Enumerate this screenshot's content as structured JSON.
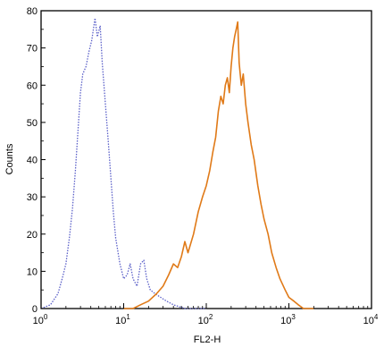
{
  "chart_data": {
    "type": "line",
    "title": "",
    "xlabel": "FL2-H",
    "ylabel": "Counts",
    "xscale": "log",
    "xlim": [
      1,
      10000
    ],
    "ylim": [
      0,
      80
    ],
    "grid": false,
    "legend": "none",
    "x_ticks": [
      {
        "value": 1,
        "base": "10",
        "exp": "0"
      },
      {
        "value": 10,
        "base": "10",
        "exp": "1"
      },
      {
        "value": 100,
        "base": "10",
        "exp": "2"
      },
      {
        "value": 1000,
        "base": "10",
        "exp": "3"
      },
      {
        "value": 10000,
        "base": "10",
        "exp": "4"
      }
    ],
    "y_ticks": [
      0,
      10,
      20,
      30,
      40,
      50,
      60,
      70,
      80
    ],
    "series": [
      {
        "style": "dotted",
        "color": "#5a5fc8",
        "points": [
          [
            1.0,
            0
          ],
          [
            1.3,
            1
          ],
          [
            1.6,
            4
          ],
          [
            1.8,
            8
          ],
          [
            2.0,
            12
          ],
          [
            2.2,
            19
          ],
          [
            2.4,
            27
          ],
          [
            2.6,
            37
          ],
          [
            2.8,
            48
          ],
          [
            3.0,
            58
          ],
          [
            3.2,
            63
          ],
          [
            3.5,
            65
          ],
          [
            3.8,
            69
          ],
          [
            4.1,
            72
          ],
          [
            4.5,
            78
          ],
          [
            4.8,
            73
          ],
          [
            5.2,
            76
          ],
          [
            5.5,
            66
          ],
          [
            6.0,
            55
          ],
          [
            6.5,
            45
          ],
          [
            7.0,
            35
          ],
          [
            7.5,
            26
          ],
          [
            8.0,
            19
          ],
          [
            9.0,
            12
          ],
          [
            10.0,
            8
          ],
          [
            11.0,
            9
          ],
          [
            12.0,
            12
          ],
          [
            13.0,
            8
          ],
          [
            14.5,
            6
          ],
          [
            16.0,
            12
          ],
          [
            17.5,
            13
          ],
          [
            19.0,
            8
          ],
          [
            21.0,
            5
          ],
          [
            24.0,
            4
          ],
          [
            28.0,
            3
          ],
          [
            33.0,
            2
          ],
          [
            40.0,
            1
          ],
          [
            55.0,
            0
          ],
          [
            100.0,
            0
          ]
        ]
      },
      {
        "style": "solid",
        "color": "#e07a18",
        "points": [
          [
            10.0,
            0
          ],
          [
            13.0,
            0
          ],
          [
            16.0,
            1
          ],
          [
            20.0,
            2
          ],
          [
            25.0,
            4
          ],
          [
            30.0,
            6
          ],
          [
            35.0,
            9
          ],
          [
            40.0,
            12
          ],
          [
            45.0,
            11
          ],
          [
            50.0,
            14
          ],
          [
            55.0,
            18
          ],
          [
            60.0,
            15
          ],
          [
            70.0,
            20
          ],
          [
            80.0,
            26
          ],
          [
            90.0,
            30
          ],
          [
            100.0,
            33
          ],
          [
            110.0,
            37
          ],
          [
            120.0,
            42
          ],
          [
            130.0,
            46
          ],
          [
            140.0,
            53
          ],
          [
            150.0,
            57
          ],
          [
            160.0,
            55
          ],
          [
            170.0,
            60
          ],
          [
            180.0,
            62
          ],
          [
            190.0,
            58
          ],
          [
            200.0,
            65
          ],
          [
            210.0,
            70
          ],
          [
            220.0,
            73
          ],
          [
            230.0,
            75
          ],
          [
            240.0,
            77
          ],
          [
            250.0,
            66
          ],
          [
            265.0,
            60
          ],
          [
            280.0,
            63
          ],
          [
            300.0,
            55
          ],
          [
            320.0,
            50
          ],
          [
            350.0,
            44
          ],
          [
            380.0,
            40
          ],
          [
            420.0,
            33
          ],
          [
            460.0,
            28
          ],
          [
            500.0,
            24
          ],
          [
            560.0,
            20
          ],
          [
            620.0,
            15
          ],
          [
            700.0,
            11
          ],
          [
            780.0,
            8
          ],
          [
            900.0,
            5
          ],
          [
            1000.0,
            3
          ],
          [
            1150.0,
            2
          ],
          [
            1300.0,
            1
          ],
          [
            1500.0,
            0
          ],
          [
            2000.0,
            0
          ]
        ]
      }
    ]
  }
}
